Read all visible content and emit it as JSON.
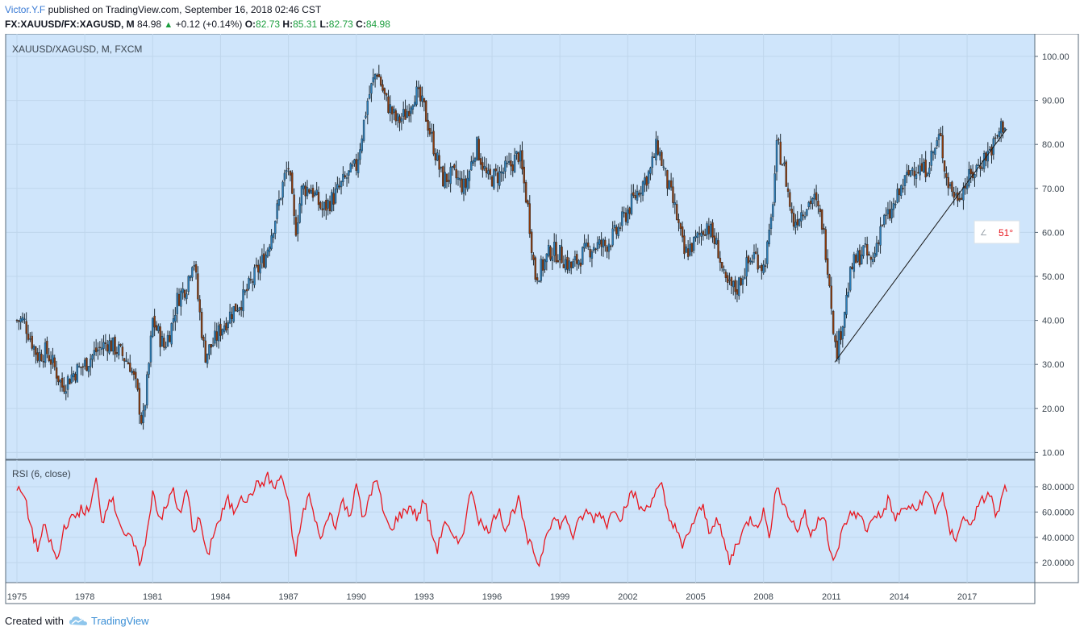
{
  "header": {
    "author": "Victor.Y.F",
    "published": "published on TradingView.com, September 16, 2018 02:46 CST",
    "symbol": "FX:XAUUSD/FX:XAGUSD, M",
    "last": "84.98",
    "change": "+0.12 (+0.14%)",
    "o_label": "O:",
    "o": "82.73",
    "h_label": "H:",
    "h": "85.31",
    "l_label": "L:",
    "l": "82.73",
    "c_label": "C:",
    "c": "84.98"
  },
  "footer": {
    "created_with": "Created with",
    "brand": "TradingView"
  },
  "colors": {
    "panel_bg": "#cfe5fb",
    "rsi_line": "#e8171f",
    "candle_up": "#2b7db8",
    "candle_down": "#8b3a0b",
    "angle_text": "#e8171f",
    "trendline": "#1a1a1a"
  },
  "chart_data": [
    {
      "type": "candlestick",
      "title": "XAUUSD/XAGUSD, M, FXCM",
      "x_ticks": [
        "1975",
        "1978",
        "1981",
        "1984",
        "1987",
        "1990",
        "1993",
        "1996",
        "1999",
        "2002",
        "2005",
        "2008",
        "2011",
        "2014",
        "2017"
      ],
      "y_ticks": [
        "100.00",
        "90.00",
        "80.00",
        "70.00",
        "60.00",
        "50.00",
        "40.00",
        "30.00",
        "20.00",
        "10.00"
      ],
      "ylim": [
        10,
        100
      ],
      "xlim": [
        1975.0,
        2018.75
      ],
      "grid": true,
      "close_path": [
        [
          1975.0,
          40
        ],
        [
          1975.3,
          40
        ],
        [
          1975.6,
          36
        ],
        [
          1975.9,
          32
        ],
        [
          1976.3,
          33
        ],
        [
          1976.6,
          30
        ],
        [
          1977.0,
          25
        ],
        [
          1977.5,
          28
        ],
        [
          1978.0,
          30
        ],
        [
          1978.5,
          33
        ],
        [
          1979.0,
          35
        ],
        [
          1979.5,
          33
        ],
        [
          1980.0,
          30
        ],
        [
          1980.3,
          24
        ],
        [
          1980.55,
          16
        ],
        [
          1980.8,
          28
        ],
        [
          1981.0,
          40
        ],
        [
          1981.5,
          34
        ],
        [
          1981.8,
          38
        ],
        [
          1982.1,
          45
        ],
        [
          1982.5,
          48
        ],
        [
          1982.8,
          55
        ],
        [
          1983.0,
          45
        ],
        [
          1983.3,
          32
        ],
        [
          1983.7,
          35
        ],
        [
          1984.0,
          38
        ],
        [
          1984.5,
          42
        ],
        [
          1985.0,
          45
        ],
        [
          1985.5,
          50
        ],
        [
          1986.0,
          55
        ],
        [
          1986.5,
          65
        ],
        [
          1986.8,
          72
        ],
        [
          1987.0,
          75
        ],
        [
          1987.3,
          60
        ],
        [
          1987.6,
          70
        ],
        [
          1988.0,
          70
        ],
        [
          1988.5,
          65
        ],
        [
          1989.0,
          68
        ],
        [
          1989.5,
          72
        ],
        [
          1990.0,
          75
        ],
        [
          1990.5,
          90
        ],
        [
          1990.9,
          97
        ],
        [
          1991.3,
          90
        ],
        [
          1991.8,
          85
        ],
        [
          1992.2,
          87
        ],
        [
          1992.6,
          92
        ],
        [
          1993.0,
          88
        ],
        [
          1993.4,
          80
        ],
        [
          1993.8,
          72
        ],
        [
          1994.3,
          73
        ],
        [
          1994.8,
          70
        ],
        [
          1995.3,
          80
        ],
        [
          1995.8,
          72
        ],
        [
          1996.3,
          73
        ],
        [
          1996.8,
          75
        ],
        [
          1997.2,
          78
        ],
        [
          1997.6,
          65
        ],
        [
          1997.9,
          50
        ],
        [
          1998.2,
          52
        ],
        [
          1998.6,
          56
        ],
        [
          1999.0,
          55
        ],
        [
          1999.5,
          52
        ],
        [
          2000.0,
          55
        ],
        [
          2000.5,
          57
        ],
        [
          2001.0,
          57
        ],
        [
          2001.5,
          60
        ],
        [
          2002.0,
          65
        ],
        [
          2002.5,
          70
        ],
        [
          2003.0,
          74
        ],
        [
          2003.3,
          80
        ],
        [
          2003.7,
          72
        ],
        [
          2004.1,
          65
        ],
        [
          2004.5,
          55
        ],
        [
          2005.0,
          58
        ],
        [
          2005.5,
          62
        ],
        [
          2006.0,
          56
        ],
        [
          2006.3,
          48
        ],
        [
          2006.8,
          47
        ],
        [
          2007.2,
          52
        ],
        [
          2007.6,
          55
        ],
        [
          2008.0,
          52
        ],
        [
          2008.3,
          60
        ],
        [
          2008.6,
          80
        ],
        [
          2008.9,
          75
        ],
        [
          2009.3,
          62
        ],
        [
          2009.7,
          65
        ],
        [
          2010.2,
          68
        ],
        [
          2010.6,
          62
        ],
        [
          2010.9,
          50
        ],
        [
          2011.2,
          32
        ],
        [
          2011.5,
          40
        ],
        [
          2011.9,
          52
        ],
        [
          2012.4,
          56
        ],
        [
          2012.8,
          53
        ],
        [
          2013.2,
          62
        ],
        [
          2013.6,
          64
        ],
        [
          2014.1,
          70
        ],
        [
          2014.6,
          75
        ],
        [
          2015.1,
          74
        ],
        [
          2015.5,
          78
        ],
        [
          2015.8,
          82
        ],
        [
          2016.1,
          72
        ],
        [
          2016.5,
          68
        ],
        [
          2016.8,
          70
        ],
        [
          2017.2,
          73
        ],
        [
          2017.6,
          76
        ],
        [
          2017.9,
          78
        ],
        [
          2018.2,
          80
        ],
        [
          2018.5,
          84
        ],
        [
          2018.7,
          85
        ]
      ],
      "trendline": {
        "start": [
          2011.15,
          30.5
        ],
        "end": [
          2018.75,
          83.5
        ]
      },
      "annotation": {
        "label": "51°"
      }
    },
    {
      "type": "line",
      "title": "RSI (6, close)",
      "y_ticks": [
        "80.0000",
        "60.0000",
        "40.0000",
        "20.0000"
      ],
      "ylim": [
        10,
        100
      ],
      "series": [
        {
          "name": "RSI (6, close)",
          "path": [
            [
              1975.0,
              77
            ],
            [
              1975.3,
              74
            ],
            [
              1975.6,
              50
            ],
            [
              1975.9,
              30
            ],
            [
              1976.2,
              48
            ],
            [
              1976.5,
              35
            ],
            [
              1976.8,
              20
            ],
            [
              1977.1,
              50
            ],
            [
              1977.5,
              55
            ],
            [
              1977.8,
              62
            ],
            [
              1978.2,
              60
            ],
            [
              1978.5,
              85
            ],
            [
              1978.8,
              50
            ],
            [
              1979.1,
              75
            ],
            [
              1979.5,
              55
            ],
            [
              1979.8,
              40
            ],
            [
              1980.1,
              38
            ],
            [
              1980.4,
              20
            ],
            [
              1980.7,
              35
            ],
            [
              1981.0,
              78
            ],
            [
              1981.3,
              55
            ],
            [
              1981.6,
              62
            ],
            [
              1981.9,
              80
            ],
            [
              1982.2,
              55
            ],
            [
              1982.5,
              78
            ],
            [
              1982.8,
              45
            ],
            [
              1983.1,
              55
            ],
            [
              1983.4,
              22
            ],
            [
              1983.7,
              45
            ],
            [
              1984.0,
              55
            ],
            [
              1984.3,
              70
            ],
            [
              1984.6,
              60
            ],
            [
              1984.9,
              75
            ],
            [
              1985.2,
              68
            ],
            [
              1985.5,
              80
            ],
            [
              1985.8,
              82
            ],
            [
              1986.1,
              88
            ],
            [
              1986.4,
              78
            ],
            [
              1986.7,
              90
            ],
            [
              1987.0,
              65
            ],
            [
              1987.3,
              25
            ],
            [
              1987.6,
              55
            ],
            [
              1987.9,
              75
            ],
            [
              1988.2,
              50
            ],
            [
              1988.5,
              40
            ],
            [
              1988.8,
              60
            ],
            [
              1989.1,
              50
            ],
            [
              1989.4,
              70
            ],
            [
              1989.7,
              55
            ],
            [
              1990.0,
              85
            ],
            [
              1990.3,
              50
            ],
            [
              1990.6,
              75
            ],
            [
              1990.9,
              85
            ],
            [
              1991.2,
              60
            ],
            [
              1991.5,
              45
            ],
            [
              1991.8,
              55
            ],
            [
              1992.1,
              60
            ],
            [
              1992.4,
              65
            ],
            [
              1992.7,
              55
            ],
            [
              1993.0,
              70
            ],
            [
              1993.3,
              45
            ],
            [
              1993.6,
              30
            ],
            [
              1993.9,
              55
            ],
            [
              1994.2,
              40
            ],
            [
              1994.5,
              35
            ],
            [
              1994.8,
              50
            ],
            [
              1995.1,
              80
            ],
            [
              1995.4,
              55
            ],
            [
              1995.7,
              45
            ],
            [
              1996.0,
              50
            ],
            [
              1996.3,
              65
            ],
            [
              1996.6,
              45
            ],
            [
              1996.9,
              60
            ],
            [
              1997.2,
              70
            ],
            [
              1997.5,
              40
            ],
            [
              1997.8,
              30
            ],
            [
              1998.1,
              18
            ],
            [
              1998.4,
              45
            ],
            [
              1998.7,
              55
            ],
            [
              1999.0,
              50
            ],
            [
              1999.3,
              55
            ],
            [
              1999.6,
              40
            ],
            [
              1999.9,
              55
            ],
            [
              2000.2,
              60
            ],
            [
              2000.5,
              55
            ],
            [
              2000.8,
              60
            ],
            [
              2001.1,
              50
            ],
            [
              2001.4,
              65
            ],
            [
              2001.7,
              55
            ],
            [
              2002.0,
              70
            ],
            [
              2002.3,
              75
            ],
            [
              2002.6,
              60
            ],
            [
              2002.9,
              65
            ],
            [
              2003.2,
              75
            ],
            [
              2003.5,
              80
            ],
            [
              2003.8,
              55
            ],
            [
              2004.1,
              50
            ],
            [
              2004.4,
              30
            ],
            [
              2004.7,
              45
            ],
            [
              2005.0,
              55
            ],
            [
              2005.3,
              65
            ],
            [
              2005.6,
              45
            ],
            [
              2005.9,
              55
            ],
            [
              2006.2,
              40
            ],
            [
              2006.5,
              20
            ],
            [
              2006.8,
              35
            ],
            [
              2007.1,
              45
            ],
            [
              2007.4,
              55
            ],
            [
              2007.7,
              50
            ],
            [
              2008.0,
              60
            ],
            [
              2008.3,
              40
            ],
            [
              2008.6,
              85
            ],
            [
              2008.9,
              65
            ],
            [
              2009.2,
              55
            ],
            [
              2009.5,
              45
            ],
            [
              2009.8,
              60
            ],
            [
              2010.1,
              40
            ],
            [
              2010.4,
              55
            ],
            [
              2010.7,
              60
            ],
            [
              2010.9,
              30
            ],
            [
              2011.1,
              18
            ],
            [
              2011.4,
              40
            ],
            [
              2011.7,
              55
            ],
            [
              2012.0,
              60
            ],
            [
              2012.3,
              55
            ],
            [
              2012.6,
              45
            ],
            [
              2012.9,
              60
            ],
            [
              2013.2,
              55
            ],
            [
              2013.5,
              70
            ],
            [
              2013.8,
              55
            ],
            [
              2014.1,
              60
            ],
            [
              2014.4,
              65
            ],
            [
              2014.7,
              60
            ],
            [
              2015.0,
              70
            ],
            [
              2015.3,
              75
            ],
            [
              2015.6,
              60
            ],
            [
              2015.9,
              75
            ],
            [
              2016.2,
              45
            ],
            [
              2016.5,
              40
            ],
            [
              2016.8,
              55
            ],
            [
              2017.1,
              50
            ],
            [
              2017.4,
              60
            ],
            [
              2017.7,
              70
            ],
            [
              2018.0,
              75
            ],
            [
              2018.3,
              55
            ],
            [
              2018.6,
              75
            ],
            [
              2018.75,
              80
            ]
          ]
        }
      ]
    }
  ]
}
